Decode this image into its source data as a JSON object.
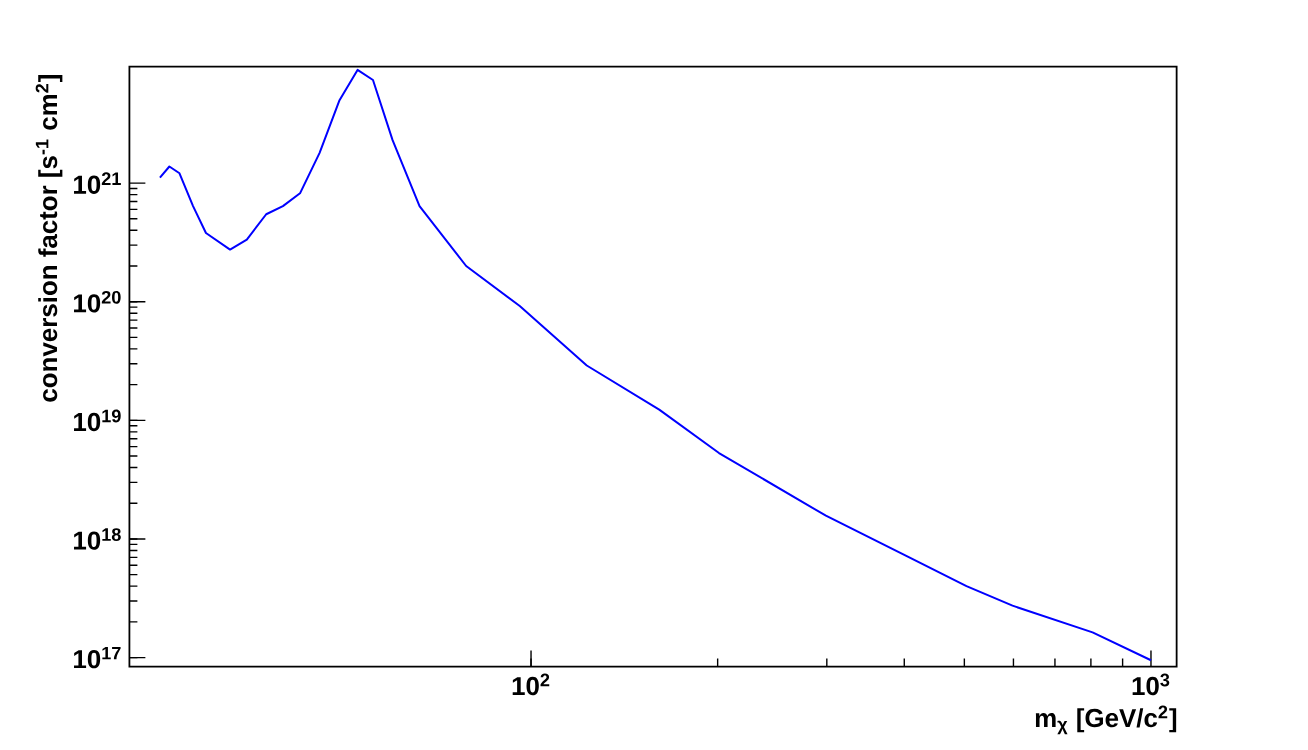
{
  "chart_data": {
    "type": "line",
    "xlabel": "m$_{χ}$ [GeV/c$^{2}$]",
    "ylabel": "conversion factor [s$^{-1}$ cm$^{2}$]",
    "log": "xy",
    "line_style": "solid",
    "xlim": [
      22.5,
      1100
    ],
    "ylim": [
      8.4e+16,
      9.6e+21
    ],
    "xticks": [
      {
        "value": 100,
        "label": "10$^{2}$"
      },
      {
        "value": 1000,
        "label": "10$^{3}$"
      }
    ],
    "yticks": [
      {
        "value": 1e+17,
        "label": "10$^{17}$"
      },
      {
        "value": 1e+18,
        "label": "10$^{18}$"
      },
      {
        "value": 1e+19,
        "label": "10$^{19}$"
      },
      {
        "value": 1e+20,
        "label": "10$^{20}$"
      },
      {
        "value": 1e+21,
        "label": "10$^{21}$"
      }
    ],
    "series": [
      {
        "color": "#0000ff",
        "x": [
          25.2,
          26.1,
          27.1,
          28.5,
          29.9,
          32.7,
          34.8,
          37.4,
          39.8,
          42.4,
          45.6,
          49.1,
          52.5,
          55.6,
          59.8,
          66.1,
          78.6,
          95.9,
          123,
          161,
          201,
          299,
          403,
          504,
          598,
          805,
          1000
        ],
        "values": [
          1.11e+21,
          1.38e+21,
          1.21e+21,
          6.4e+20,
          3.8e+20,
          2.75e+20,
          3.34e+20,
          5.46e+20,
          6.4e+20,
          8.2e+20,
          1.8e+21,
          5e+21,
          9e+21,
          7.4e+21,
          2.3e+21,
          6.4e+20,
          2e+20,
          9.2e+19,
          2.9e+19,
          1.23e+19,
          5.3e+18,
          1.57e+18,
          7.2e+17,
          4e+17,
          2.74e+17,
          1.63e+17,
          9.5e+16
        ]
      }
    ]
  }
}
